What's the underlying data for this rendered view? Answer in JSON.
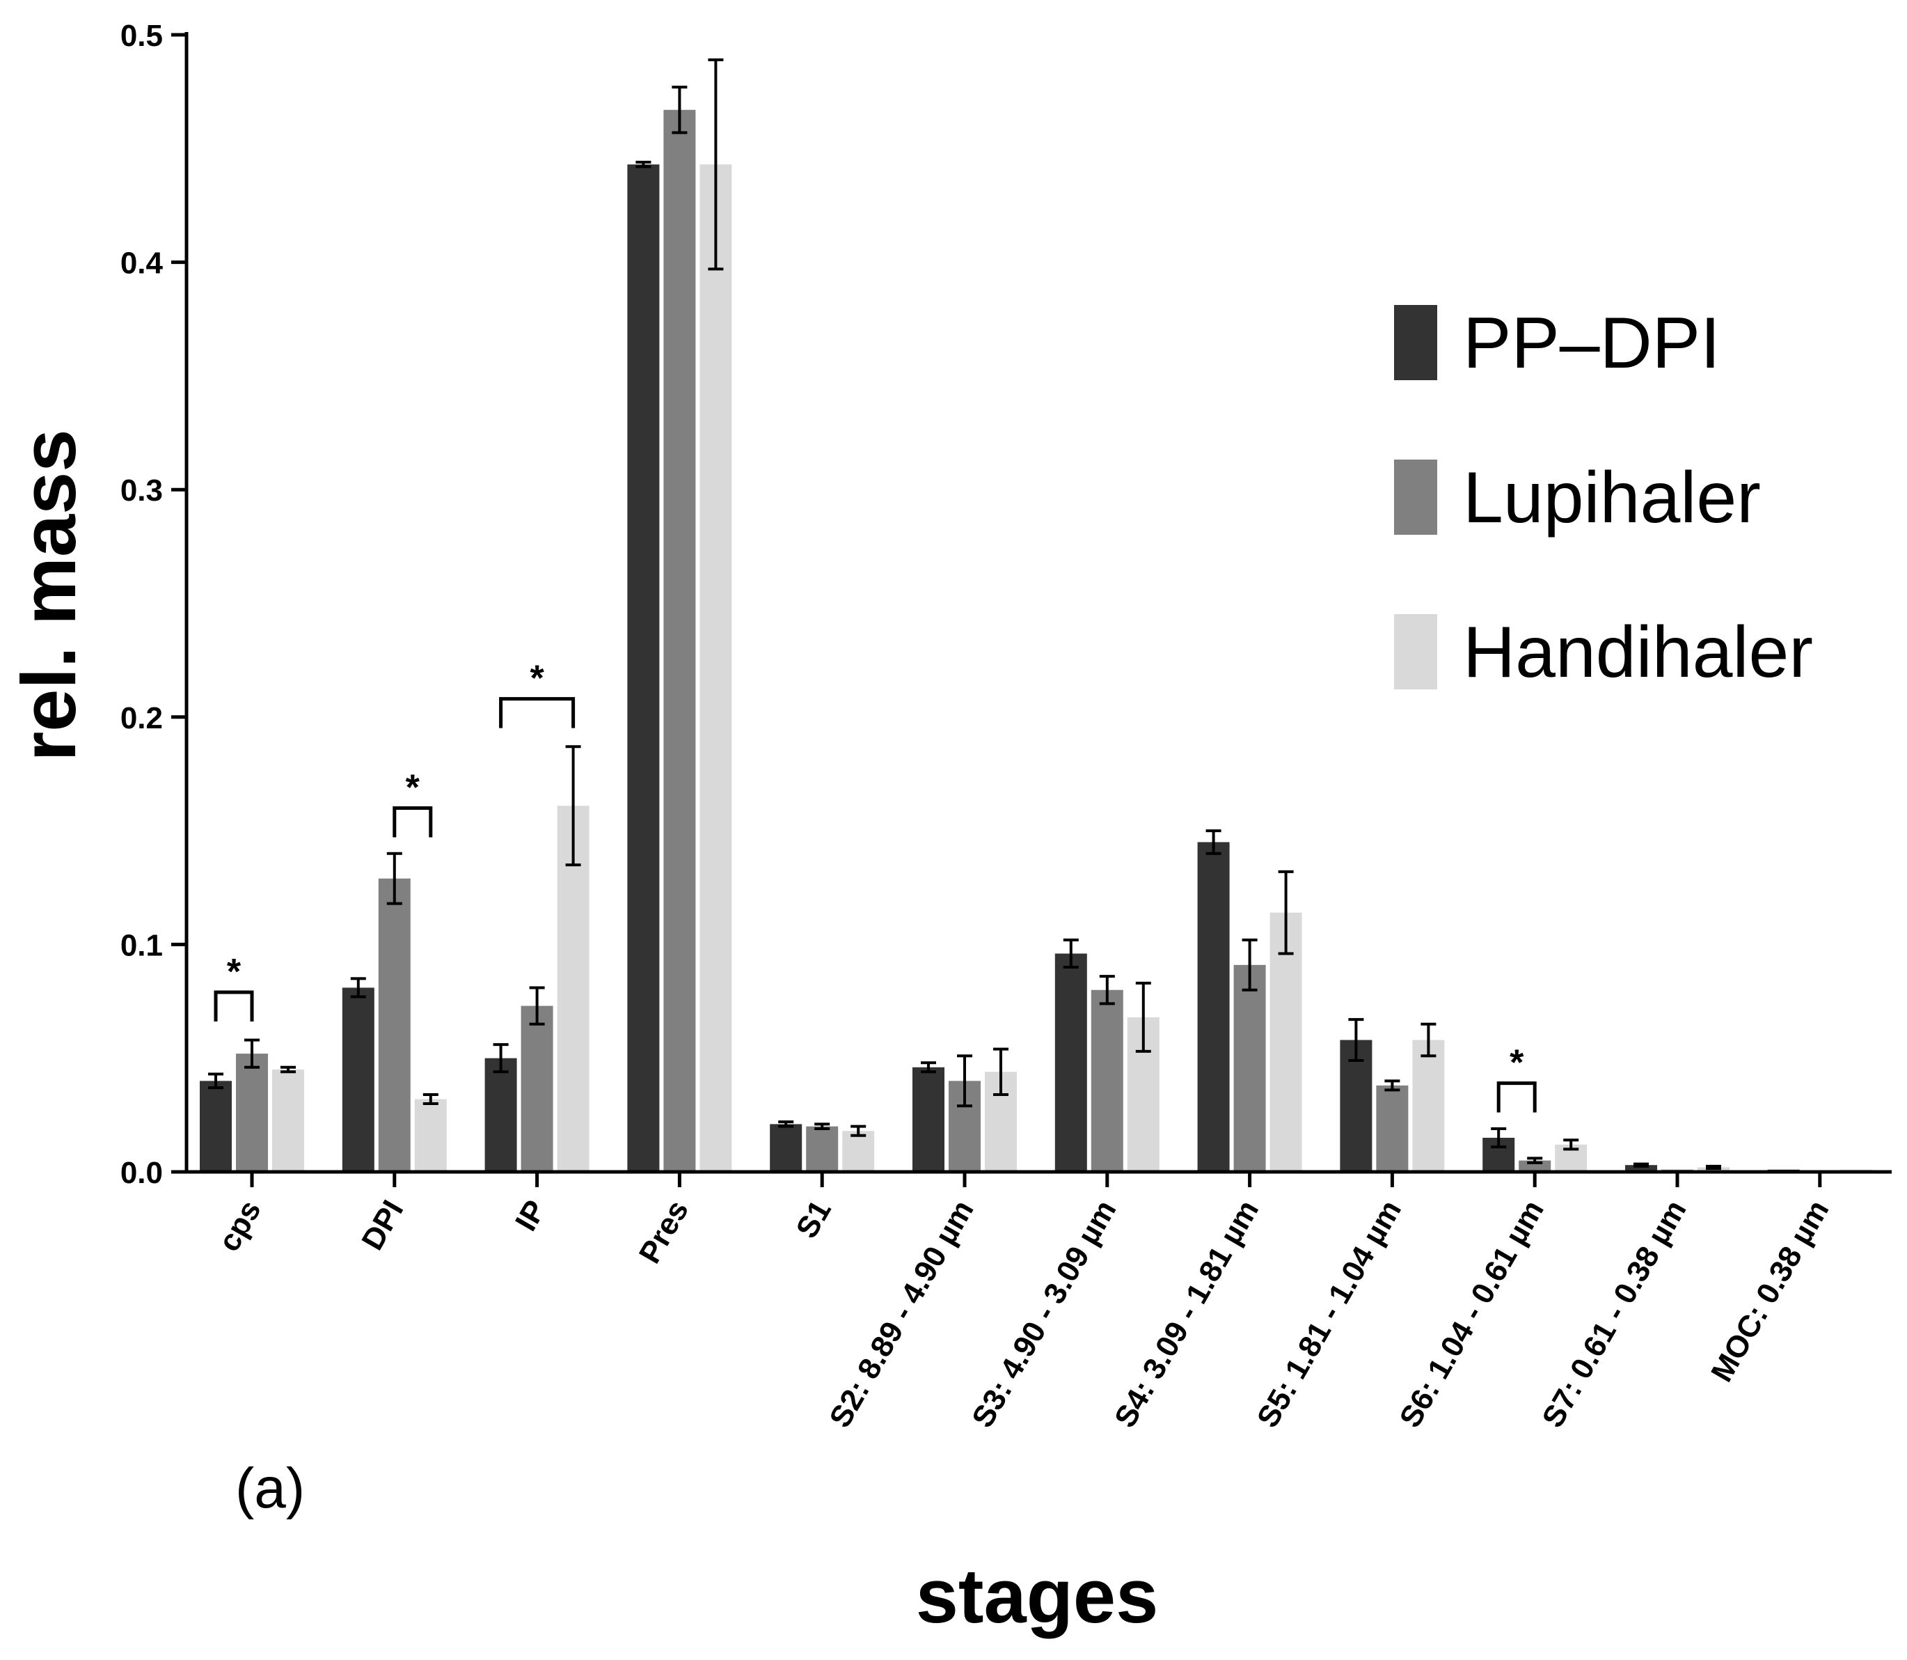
{
  "chart_data": {
    "type": "bar",
    "title": "",
    "xlabel": "stages",
    "ylabel": "rel. mass",
    "ylim": [
      0,
      0.5
    ],
    "yticks": [
      "0.0",
      "0.1",
      "0.2",
      "0.3",
      "0.4",
      "0.5"
    ],
    "panel_label": "(a)",
    "legend_position": "top-right",
    "categories": [
      "cps",
      "DPI",
      "IP",
      "Pres",
      "S1",
      "S2: 8.89 - 4.90 µm",
      "S3: 4.90 - 3.09 µm",
      "S4: 3.09 - 1.81 µm",
      "S5: 1.81 - 1.04 µm",
      "S6: 1.04 - 0.61 µm",
      "S7: 0.61 - 0.38 µm",
      "MOC: 0.38 µm"
    ],
    "series": [
      {
        "name": "PP–DPI",
        "color": "#333333",
        "values": [
          0.04,
          0.081,
          0.05,
          0.443,
          0.021,
          0.046,
          0.096,
          0.145,
          0.058,
          0.015,
          0.003,
          0.001
        ],
        "errors": [
          0.003,
          0.004,
          0.006,
          0.001,
          0.001,
          0.002,
          0.006,
          0.005,
          0.009,
          0.004,
          0.0005,
          0.0003
        ]
      },
      {
        "name": "Lupihaler",
        "color": "#808080",
        "values": [
          0.052,
          0.129,
          0.073,
          0.467,
          0.02,
          0.04,
          0.08,
          0.091,
          0.038,
          0.005,
          0.001,
          0.0005
        ],
        "errors": [
          0.006,
          0.011,
          0.008,
          0.01,
          0.001,
          0.011,
          0.006,
          0.011,
          0.002,
          0.001,
          0.0003,
          0.0002
        ]
      },
      {
        "name": "Handihaler",
        "color": "#d9d9d9",
        "values": [
          0.045,
          0.032,
          0.161,
          0.443,
          0.018,
          0.044,
          0.068,
          0.114,
          0.058,
          0.012,
          0.002,
          0.001
        ],
        "errors": [
          0.001,
          0.002,
          0.026,
          0.046,
          0.002,
          0.01,
          0.015,
          0.018,
          0.007,
          0.002,
          0.0005,
          0.0003
        ]
      }
    ],
    "significance": [
      {
        "category": "cps",
        "from_series": 0,
        "to_series": 1,
        "label": "*",
        "bracket_y": 0.079
      },
      {
        "category": "DPI",
        "from_series": 1,
        "to_series": 2,
        "label": "*",
        "bracket_y": 0.16
      },
      {
        "category": "IP",
        "from_series": 0,
        "to_series": 2,
        "label": "*",
        "bracket_y": 0.208
      },
      {
        "category": "S6: 1.04 - 0.61 µm",
        "from_series": 0,
        "to_series": 1,
        "label": "*",
        "bracket_y": 0.039
      }
    ]
  }
}
